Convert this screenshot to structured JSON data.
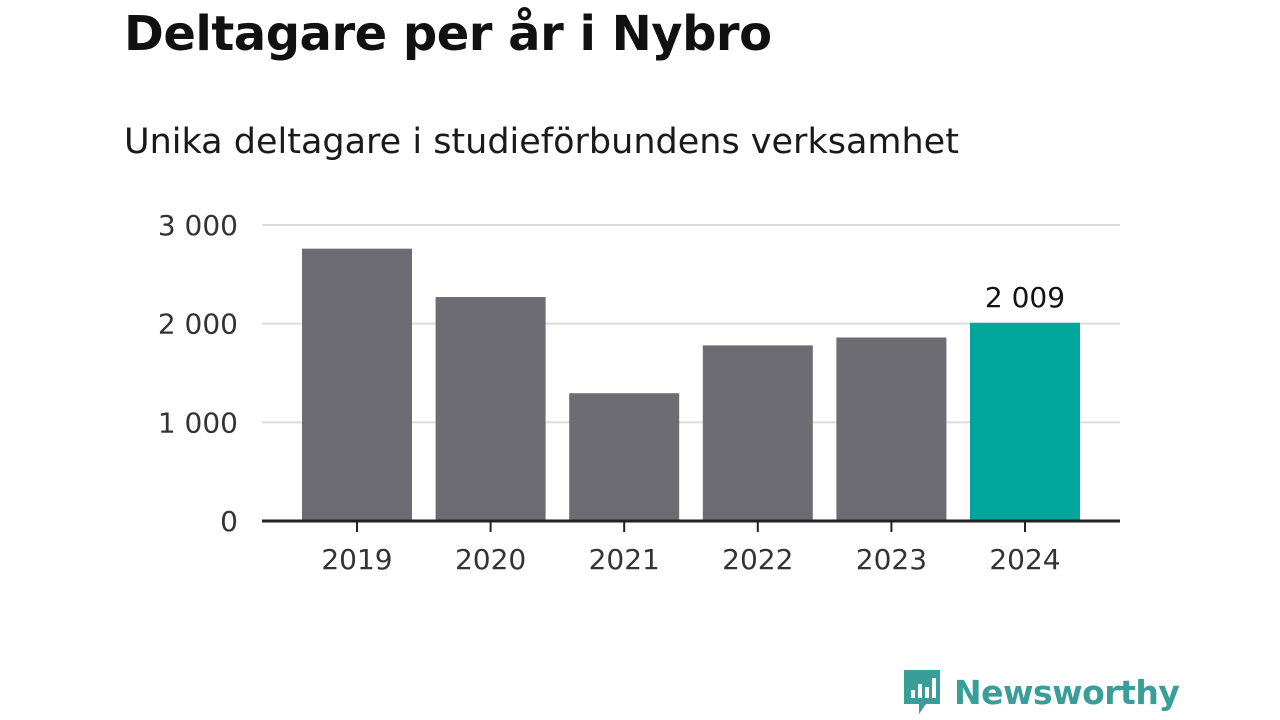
{
  "chart_data": {
    "type": "bar",
    "title": "Deltagare per år i Nybro",
    "subtitle": "Unika deltagare i studieförbundens verksamhet",
    "categories": [
      "2019",
      "2020",
      "2021",
      "2022",
      "2023",
      "2024"
    ],
    "values": [
      2760,
      2270,
      1295,
      1780,
      1860,
      2009
    ],
    "highlight_index": 5,
    "highlight_label": "2 009",
    "ylim": [
      0,
      3000
    ],
    "yticks": [
      0,
      1000,
      2000,
      3000
    ],
    "ytick_labels": [
      "0",
      "1 000",
      "2 000",
      "3 000"
    ],
    "grid": true,
    "colors": {
      "bar": "#6d6c72",
      "highlight": "#00a69c",
      "grid": "#dddddd",
      "axis": "#222222"
    }
  },
  "brand": {
    "name": "Newsworthy",
    "icon": "newsworthy-logo-icon",
    "color": "#3a9e98"
  }
}
